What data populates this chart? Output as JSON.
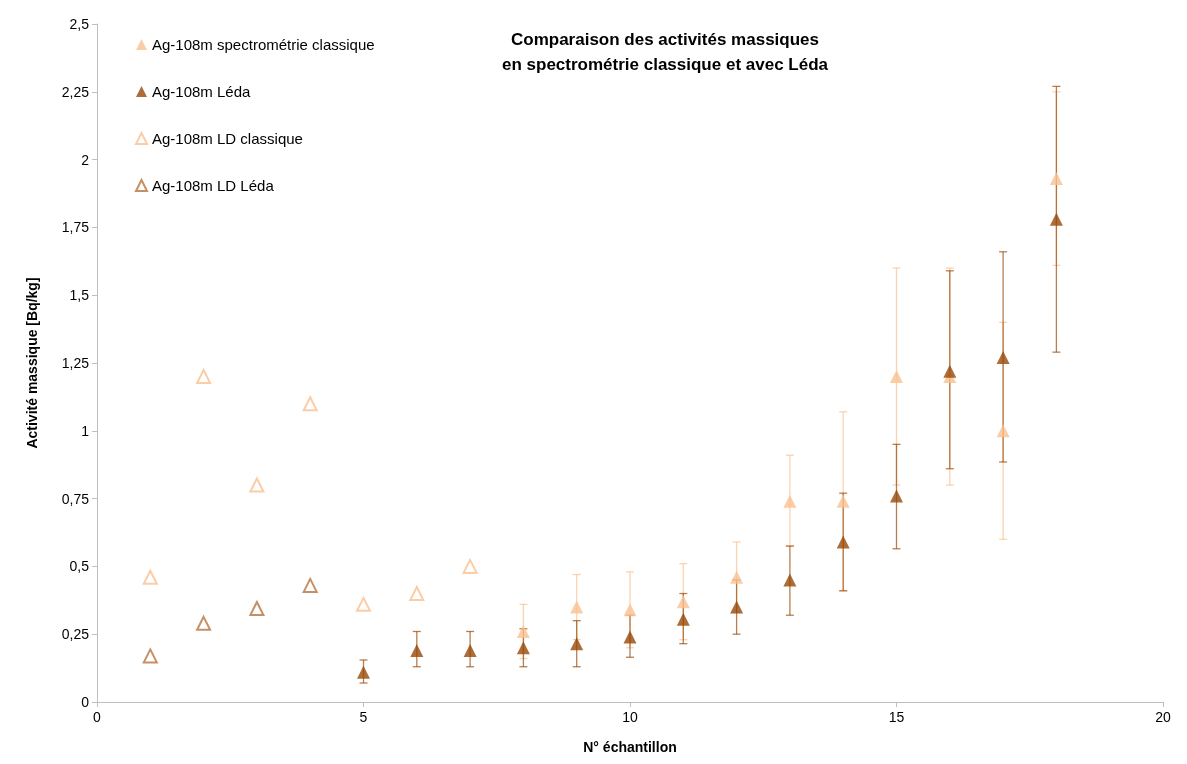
{
  "chart_data": {
    "type": "scatter",
    "title": "Comparaison des activités massiques\nen spectrométrie classique et avec Léda",
    "xlabel": "N° échantillon",
    "ylabel": "Activité massique [Bq/kg]",
    "xlim": [
      0,
      20
    ],
    "xticks": [
      0,
      5,
      10,
      15,
      20
    ],
    "ylim": [
      0,
      2.5
    ],
    "yticks": [
      0,
      {
        "value": 0.25,
        "label": "0,25"
      },
      {
        "value": 0.5,
        "label": "0,5"
      },
      {
        "value": 0.75,
        "label": "0,75"
      },
      1,
      {
        "value": 1.25,
        "label": "1,25"
      },
      {
        "value": 1.5,
        "label": "1,5"
      },
      {
        "value": 1.75,
        "label": "1,75"
      },
      2,
      {
        "value": 2.25,
        "label": "2,25"
      },
      {
        "value": 2.5,
        "label": "2,5"
      }
    ],
    "grid": false,
    "legend": "top left",
    "marker": "triangle",
    "series": [
      {
        "name": "Ag-108m spectrométrie classique",
        "color": "#fac090",
        "x": [
          8,
          9,
          10,
          11,
          12,
          13,
          14,
          15,
          16,
          17,
          18
        ],
        "values": [
          0.26,
          0.35,
          0.34,
          0.37,
          0.46,
          0.74,
          0.74,
          1.2,
          1.2,
          1.0,
          1.93
        ],
        "errors": [
          [
            0.16,
            0.36
          ],
          [
            0.23,
            0.47
          ],
          [
            0.2,
            0.48
          ],
          [
            0.23,
            0.51
          ],
          [
            0.33,
            0.59
          ],
          [
            0.575,
            0.91
          ],
          [
            0.41,
            1.07
          ],
          [
            0.8,
            1.6
          ],
          [
            0.8,
            1.6
          ],
          [
            0.6,
            1.4
          ],
          [
            1.61,
            2.25
          ]
        ]
      },
      {
        "name": "Ag-108m Léda",
        "color": "#984807",
        "x": [
          5,
          6,
          7,
          8,
          9,
          10,
          11,
          12,
          13,
          14,
          15,
          16,
          17,
          18
        ],
        "values": [
          0.11,
          0.19,
          0.19,
          0.2,
          0.215,
          0.24,
          0.305,
          0.35,
          0.45,
          0.59,
          0.76,
          1.22,
          1.27,
          1.78
        ],
        "errors": [
          [
            0.07,
            0.155
          ],
          [
            0.13,
            0.26
          ],
          [
            0.13,
            0.26
          ],
          [
            0.13,
            0.27
          ],
          [
            0.13,
            0.3
          ],
          [
            0.165,
            0.32
          ],
          [
            0.215,
            0.4
          ],
          [
            0.25,
            0.45
          ],
          [
            0.32,
            0.575
          ],
          [
            0.41,
            0.77
          ],
          [
            0.565,
            0.95
          ],
          [
            0.86,
            1.59
          ],
          [
            0.885,
            1.66
          ],
          [
            1.29,
            2.27
          ]
        ]
      },
      {
        "name": "Ag-108m LD classique",
        "color": "#fac090",
        "marker": "triangle-open",
        "x": [
          1,
          2,
          3,
          4,
          5,
          6,
          7
        ],
        "values": [
          0.46,
          1.2,
          0.8,
          1.1,
          0.36,
          0.4,
          0.5
        ]
      },
      {
        "name": "Ag-108m LD Léda",
        "color": "#b8743e",
        "marker": "triangle-open",
        "x": [
          1,
          2,
          3,
          4
        ],
        "values": [
          0.17,
          0.29,
          0.345,
          0.43
        ]
      }
    ]
  }
}
